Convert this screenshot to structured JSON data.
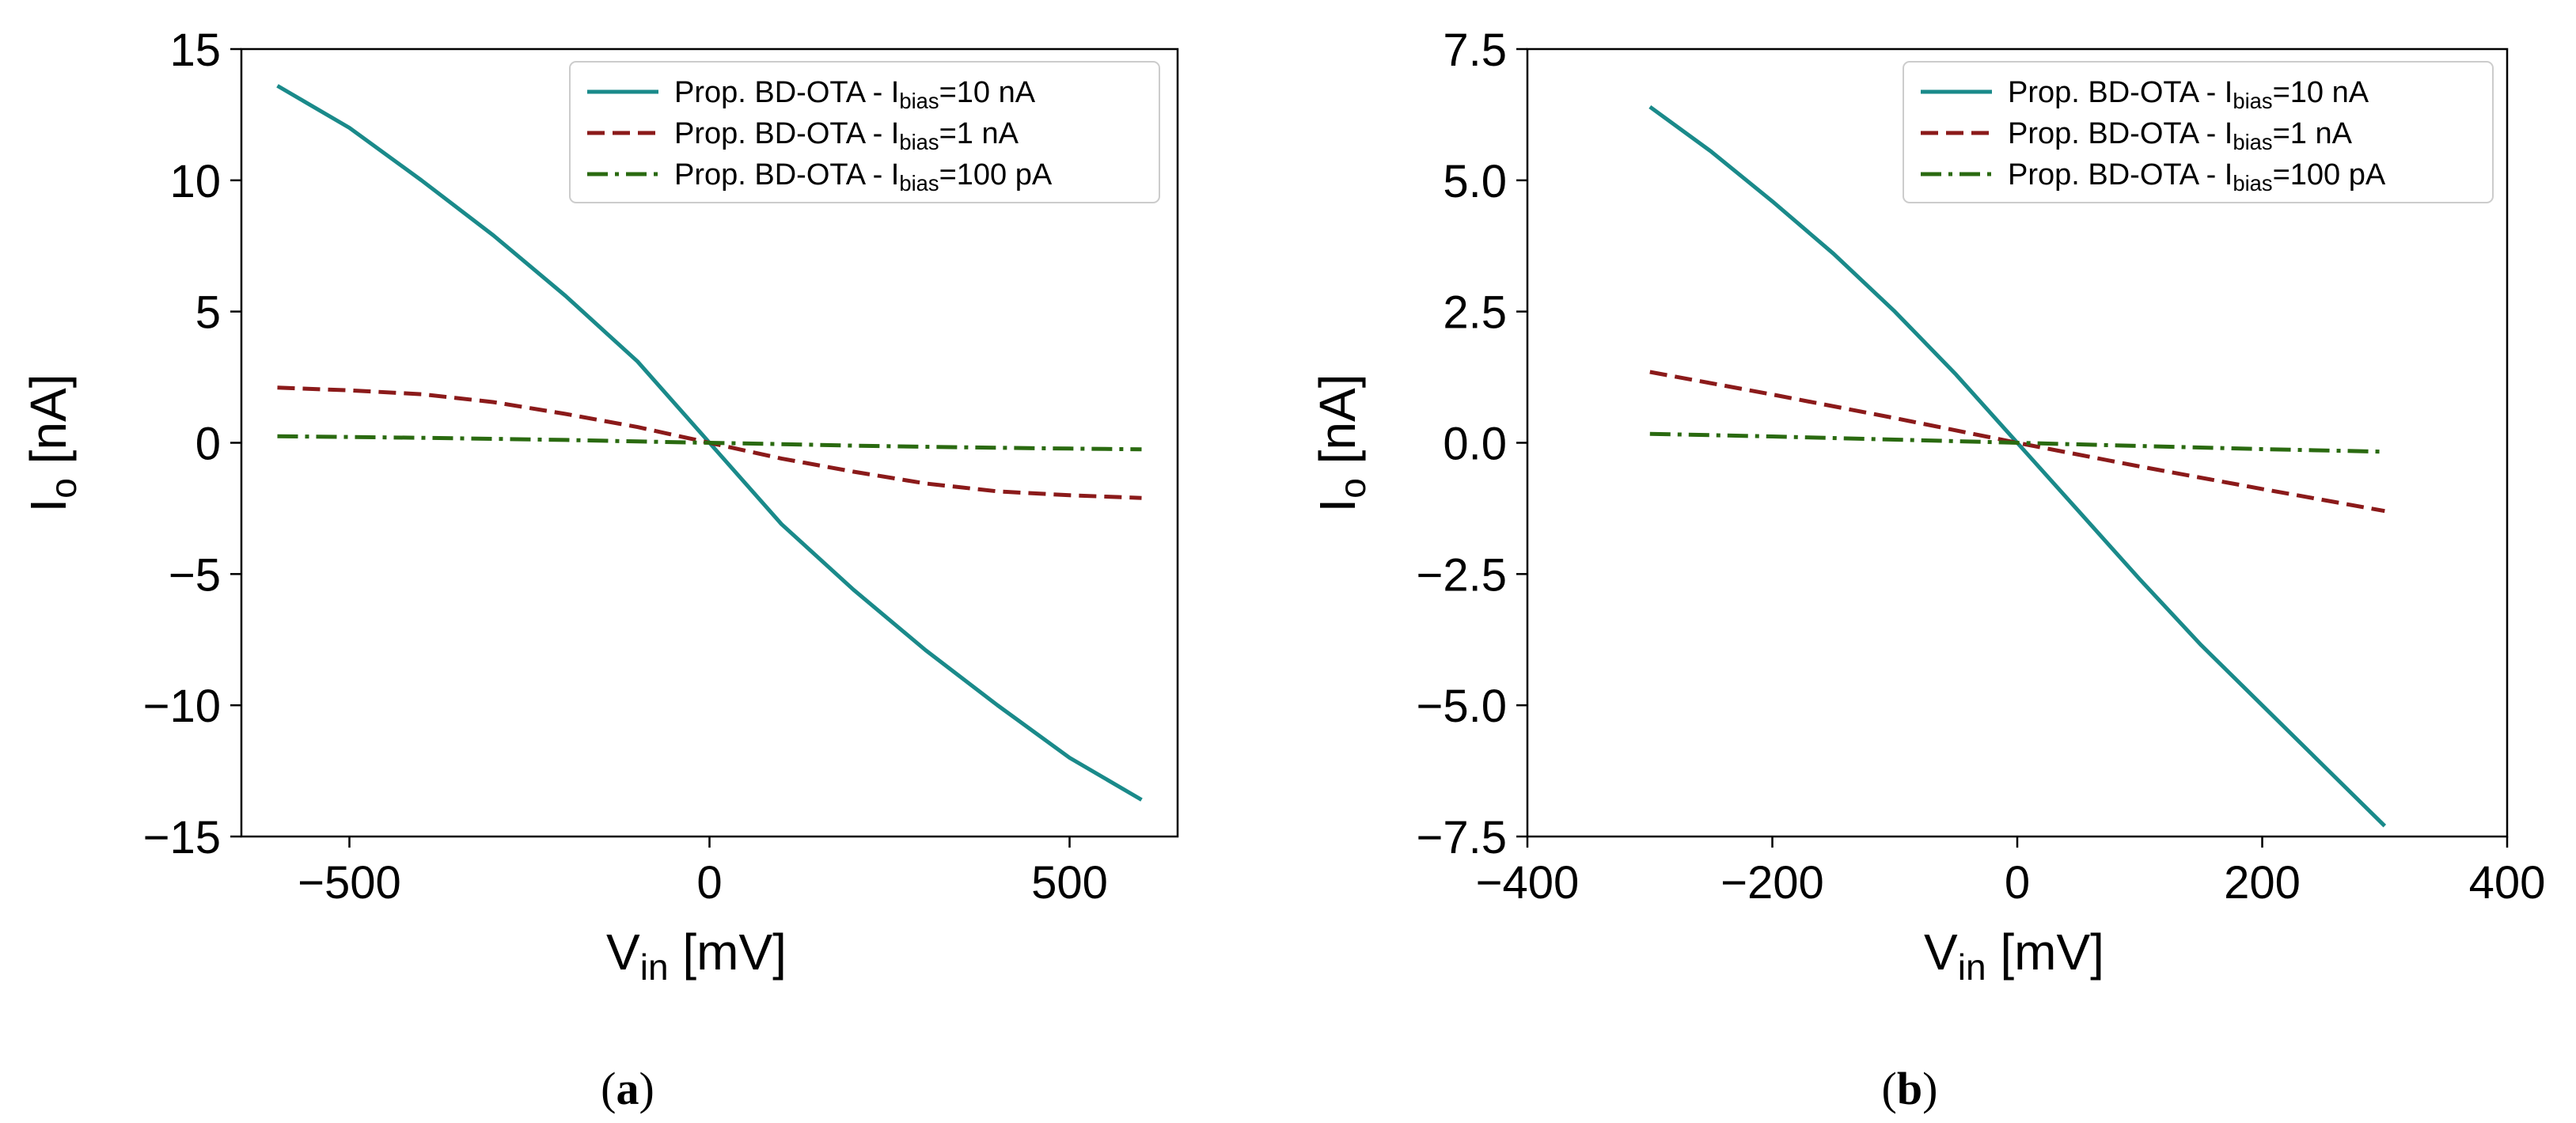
{
  "chart_data": [
    {
      "type": "line",
      "caption": "(a)",
      "caption_letter": "a",
      "xlabel": "V",
      "xlabel_sub": "in",
      "xlabel_unit": " [mV]",
      "ylabel": "I",
      "ylabel_sub": "o",
      "ylabel_unit": " [nA]",
      "xlim": [
        -650,
        650
      ],
      "ylim": [
        -15,
        15
      ],
      "xticks": [
        -500,
        0,
        500
      ],
      "xtick_labels": [
        "−500",
        "0",
        "500"
      ],
      "yticks": [
        15,
        10,
        5,
        0,
        -5,
        -10,
        -15
      ],
      "ytick_labels": [
        "15",
        "10",
        "5",
        "0",
        "−5",
        "−10",
        "−15"
      ],
      "grid": false,
      "legend_position": "top-right",
      "series": [
        {
          "name": "Prop. BD-OTA - I",
          "name_sub": "bias",
          "name_suffix": "=10 nA",
          "color": "#1a8a8a",
          "dash": "solid",
          "x": [
            -600,
            -500,
            -400,
            -300,
            -200,
            -100,
            0,
            100,
            200,
            300,
            400,
            500,
            600
          ],
          "y": [
            13.6,
            12.0,
            10.0,
            7.9,
            5.6,
            3.1,
            0,
            -3.1,
            -5.6,
            -7.9,
            -10.0,
            -12.0,
            -13.6
          ]
        },
        {
          "name": "Prop. BD-OTA - I",
          "name_sub": "bias",
          "name_suffix": "=1 nA",
          "color": "#8b1a1a",
          "dash": "dashed",
          "x": [
            -600,
            -500,
            -400,
            -300,
            -200,
            -100,
            0,
            100,
            200,
            300,
            400,
            500,
            600
          ],
          "y": [
            2.1,
            2.0,
            1.85,
            1.55,
            1.1,
            0.6,
            0,
            -0.6,
            -1.1,
            -1.55,
            -1.85,
            -2.0,
            -2.1
          ]
        },
        {
          "name": "Prop. BD-OTA - I",
          "name_sub": "bias",
          "name_suffix": "=100 pA",
          "color": "#2a6a10",
          "dash": "dashdot",
          "x": [
            -600,
            -500,
            -400,
            -300,
            -200,
            -100,
            0,
            100,
            200,
            300,
            400,
            500,
            600
          ],
          "y": [
            0.25,
            0.22,
            0.19,
            0.15,
            0.11,
            0.05,
            0,
            -0.05,
            -0.11,
            -0.15,
            -0.19,
            -0.22,
            -0.25
          ]
        }
      ]
    },
    {
      "type": "line",
      "caption": "(b)",
      "caption_letter": "b",
      "xlabel": "V",
      "xlabel_sub": "in",
      "xlabel_unit": " [mV]",
      "ylabel": "I",
      "ylabel_sub": "o",
      "ylabel_unit": " [nA]",
      "xlim": [
        -400,
        400
      ],
      "ylim": [
        -7.5,
        7.5
      ],
      "xticks": [
        -400,
        -200,
        0,
        200,
        400
      ],
      "xtick_labels": [
        "−400",
        "−200",
        "0",
        "200",
        "400"
      ],
      "yticks": [
        7.5,
        5.0,
        2.5,
        0.0,
        -2.5,
        -5.0,
        -7.5
      ],
      "ytick_labels": [
        "7.5",
        "5.0",
        "2.5",
        "0.0",
        "−2.5",
        "−5.0",
        "−7.5"
      ],
      "grid": false,
      "legend_position": "top-right",
      "series": [
        {
          "name": "Prop. BD-OTA - I",
          "name_sub": "bias",
          "name_suffix": "=10 nA",
          "color": "#1a8a8a",
          "dash": "solid",
          "x": [
            -300,
            -250,
            -200,
            -150,
            -100,
            -50,
            0,
            50,
            100,
            150,
            200,
            250,
            300
          ],
          "y": [
            6.4,
            5.55,
            4.6,
            3.6,
            2.5,
            1.3,
            0,
            -1.3,
            -2.6,
            -3.85,
            -5.0,
            -6.15,
            -7.3
          ]
        },
        {
          "name": "Prop. BD-OTA - I",
          "name_sub": "bias",
          "name_suffix": "=1 nA",
          "color": "#8b1a1a",
          "dash": "dashed",
          "x": [
            -300,
            -200,
            -100,
            0,
            100,
            200,
            300
          ],
          "y": [
            1.35,
            0.92,
            0.47,
            0,
            -0.45,
            -0.88,
            -1.3
          ]
        },
        {
          "name": "Prop. BD-OTA - I",
          "name_sub": "bias",
          "name_suffix": "=100 pA",
          "color": "#2a6a10",
          "dash": "dashdot",
          "x": [
            -300,
            -200,
            -100,
            0,
            100,
            200,
            300
          ],
          "y": [
            0.17,
            0.12,
            0.06,
            0,
            -0.06,
            -0.12,
            -0.17
          ]
        }
      ]
    }
  ]
}
